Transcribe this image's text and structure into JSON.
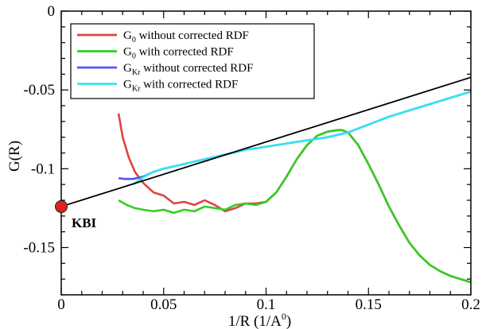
{
  "chart_data": {
    "type": "line",
    "title": "",
    "xlabel": "1/R (1/A",
    "xlabel_sup": "0",
    "xlabel_close": ")",
    "ylabel": "G(R)",
    "xlim": [
      0,
      0.2
    ],
    "ylim": [
      -0.18,
      0
    ],
    "x_ticks": [
      0,
      0.05,
      0.1,
      0.15,
      0.2
    ],
    "x_tick_labels": [
      "0",
      "0.05",
      "0.1",
      "0.15",
      "0.2"
    ],
    "y_ticks": [
      0,
      -0.05,
      -0.1,
      -0.15
    ],
    "y_tick_labels": [
      "0",
      "-0.05",
      "-0.1",
      "-0.15"
    ],
    "grid": false,
    "legend_position": "top-left",
    "series": [
      {
        "name": "without corrected RDF",
        "sym": "G",
        "sub": "0",
        "color": "#dd4444",
        "x": [
          0.028,
          0.03,
          0.033,
          0.036,
          0.04,
          0.045,
          0.05,
          0.055,
          0.06,
          0.065,
          0.07,
          0.075,
          0.08,
          0.085,
          0.09,
          0.095,
          0.1,
          0.105,
          0.11,
          0.115,
          0.12,
          0.125,
          0.13,
          0.135,
          0.137,
          0.14,
          0.145,
          0.15,
          0.155,
          0.16,
          0.165,
          0.17,
          0.175,
          0.18,
          0.185,
          0.19,
          0.195,
          0.2
        ],
        "y": [
          -0.065,
          -0.08,
          -0.093,
          -0.102,
          -0.109,
          -0.115,
          -0.117,
          -0.122,
          -0.121,
          -0.123,
          -0.12,
          -0.123,
          -0.127,
          -0.125,
          -0.122,
          -0.122,
          -0.121,
          -0.115,
          -0.105,
          -0.094,
          -0.085,
          -0.079,
          -0.0765,
          -0.0755,
          -0.0755,
          -0.077,
          -0.085,
          -0.097,
          -0.11,
          -0.124,
          -0.136,
          -0.147,
          -0.155,
          -0.161,
          -0.165,
          -0.168,
          -0.17,
          -0.172
        ]
      },
      {
        "name": "with corrected RDF",
        "sym": "G",
        "sub": "0",
        "color": "#33cc22",
        "x": [
          0.028,
          0.032,
          0.036,
          0.04,
          0.045,
          0.05,
          0.055,
          0.06,
          0.065,
          0.07,
          0.075,
          0.08,
          0.085,
          0.09,
          0.095,
          0.1,
          0.105,
          0.11,
          0.115,
          0.12,
          0.125,
          0.13,
          0.135,
          0.137,
          0.14,
          0.145,
          0.15,
          0.155,
          0.16,
          0.165,
          0.17,
          0.175,
          0.18,
          0.185,
          0.19,
          0.195,
          0.2
        ],
        "y": [
          -0.12,
          -0.123,
          -0.125,
          -0.126,
          -0.127,
          -0.126,
          -0.128,
          -0.126,
          -0.127,
          -0.124,
          -0.125,
          -0.126,
          -0.123,
          -0.122,
          -0.123,
          -0.121,
          -0.115,
          -0.105,
          -0.094,
          -0.085,
          -0.079,
          -0.0765,
          -0.0755,
          -0.0755,
          -0.077,
          -0.085,
          -0.097,
          -0.11,
          -0.124,
          -0.136,
          -0.147,
          -0.155,
          -0.161,
          -0.165,
          -0.168,
          -0.17,
          -0.172
        ]
      },
      {
        "name": "without corrected RDF",
        "sym": "G",
        "sub": "Kr",
        "color": "#5555ee",
        "x": [
          0.028,
          0.031,
          0.035,
          0.04,
          0.045,
          0.05,
          0.06,
          0.07,
          0.08,
          0.09,
          0.1,
          0.11,
          0.12,
          0.13,
          0.14,
          0.15,
          0.16,
          0.17,
          0.18,
          0.19,
          0.2
        ],
        "y": [
          -0.106,
          -0.1065,
          -0.1065,
          -0.105,
          -0.102,
          -0.1,
          -0.097,
          -0.094,
          -0.091,
          -0.088,
          -0.086,
          -0.084,
          -0.082,
          -0.08,
          -0.077,
          -0.072,
          -0.067,
          -0.063,
          -0.059,
          -0.055,
          -0.051
        ]
      },
      {
        "name": "with corrected RDF",
        "sym": "G",
        "sub": "Kr",
        "color": "#33e5ee",
        "x": [
          0.035,
          0.04,
          0.045,
          0.05,
          0.06,
          0.07,
          0.08,
          0.09,
          0.1,
          0.11,
          0.12,
          0.13,
          0.14,
          0.15,
          0.16,
          0.17,
          0.18,
          0.19,
          0.2
        ],
        "y": [
          -0.11,
          -0.1055,
          -0.102,
          -0.1,
          -0.097,
          -0.094,
          -0.091,
          -0.088,
          -0.086,
          -0.084,
          -0.082,
          -0.08,
          -0.077,
          -0.072,
          -0.067,
          -0.063,
          -0.059,
          -0.055,
          -0.051
        ]
      }
    ],
    "extrapolation_line": {
      "color": "#000000",
      "x": [
        0,
        0.2
      ],
      "y": [
        -0.124,
        -0.042
      ]
    },
    "point": {
      "label": "KBI",
      "x": 0.0,
      "y": -0.124,
      "color": "#dd2222"
    }
  }
}
